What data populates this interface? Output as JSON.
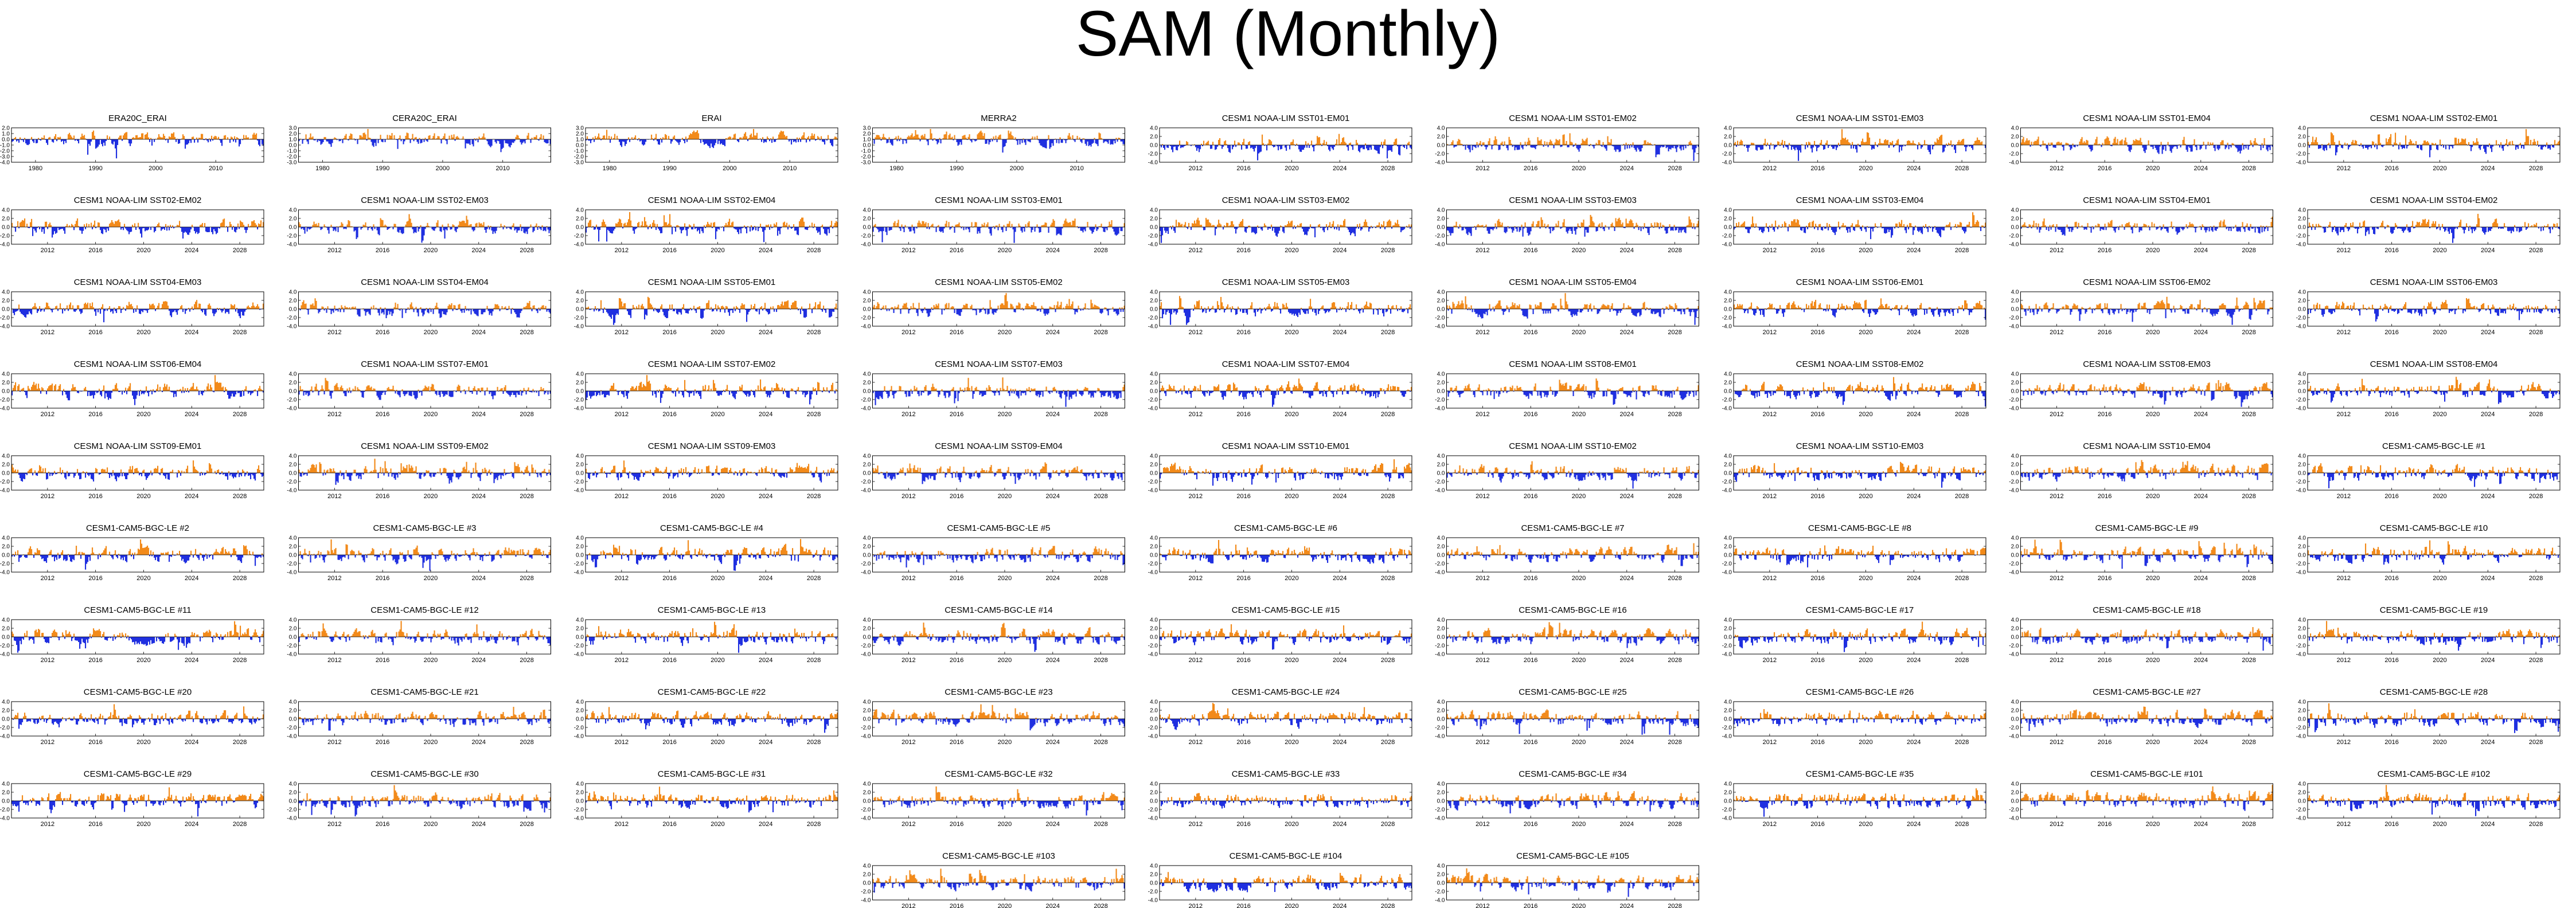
{
  "title": "SAM (Monthly)",
  "colors": {
    "positive": "#f28a1a",
    "negative": "#1f2fe0",
    "axis": "#000000"
  },
  "chart_data": {
    "type": "bar",
    "layout": "small-multiples",
    "ylim": [
      -4,
      4
    ],
    "grid": false,
    "panels": [
      {
        "title": "ERA20C_ERAI",
        "ylim": [
          -6,
          3
        ],
        "yticks": [
          "2.0",
          "1.0",
          "0.0",
          "-1.0",
          "-2.0",
          "-3.0",
          "-4.0"
        ],
        "xticks": [
          "1980",
          "1990",
          "2000",
          "2010"
        ],
        "xlim": [
          1976,
          2018
        ]
      },
      {
        "title": "CERA20C_ERAI",
        "ylim": [
          -6,
          3
        ],
        "yticks": [
          "3.0",
          "2.0",
          "1.0",
          "0.0",
          "-1.0",
          "-2.0",
          "-3.0"
        ],
        "xticks": [
          "1980",
          "1990",
          "2000",
          "2010"
        ],
        "xlim": [
          1976,
          2018
        ]
      },
      {
        "title": "ERAI",
        "ylim": [
          -6,
          3
        ],
        "yticks": [
          "3.0",
          "2.0",
          "1.0",
          "0.0",
          "-1.0",
          "-2.0",
          "-3.0"
        ],
        "xticks": [
          "1980",
          "1990",
          "2000",
          "2010"
        ],
        "xlim": [
          1976,
          2018
        ]
      },
      {
        "title": "MERRA2",
        "ylim": [
          -6,
          3
        ],
        "yticks": [
          "3.0",
          "2.0",
          "1.0",
          "0.0",
          "-1.0",
          "-2.0",
          "-3.0"
        ],
        "xticks": [
          "1980",
          "1990",
          "2000",
          "2010"
        ],
        "xlim": [
          1976,
          2018
        ]
      },
      {
        "title": "CESM1 NOAA-LIM SST01-EM01"
      },
      {
        "title": "CESM1 NOAA-LIM SST01-EM02"
      },
      {
        "title": "CESM1 NOAA-LIM SST01-EM03"
      },
      {
        "title": "CESM1 NOAA-LIM SST01-EM04"
      },
      {
        "title": "CESM1 NOAA-LIM SST02-EM01"
      },
      {
        "title": "CESM1 NOAA-LIM SST02-EM02"
      },
      {
        "title": "CESM1 NOAA-LIM SST02-EM03"
      },
      {
        "title": "CESM1 NOAA-LIM SST02-EM04"
      },
      {
        "title": "CESM1 NOAA-LIM SST03-EM01"
      },
      {
        "title": "CESM1 NOAA-LIM SST03-EM02"
      },
      {
        "title": "CESM1 NOAA-LIM SST03-EM03"
      },
      {
        "title": "CESM1 NOAA-LIM SST03-EM04"
      },
      {
        "title": "CESM1 NOAA-LIM SST04-EM01"
      },
      {
        "title": "CESM1 NOAA-LIM SST04-EM02"
      },
      {
        "title": "CESM1 NOAA-LIM SST04-EM03"
      },
      {
        "title": "CESM1 NOAA-LIM SST04-EM04"
      },
      {
        "title": "CESM1 NOAA-LIM SST05-EM01"
      },
      {
        "title": "CESM1 NOAA-LIM SST05-EM02"
      },
      {
        "title": "CESM1 NOAA-LIM SST05-EM03"
      },
      {
        "title": "CESM1 NOAA-LIM SST05-EM04"
      },
      {
        "title": "CESM1 NOAA-LIM SST06-EM01"
      },
      {
        "title": "CESM1 NOAA-LIM SST06-EM02"
      },
      {
        "title": "CESM1 NOAA-LIM SST06-EM03"
      },
      {
        "title": "CESM1 NOAA-LIM SST06-EM04"
      },
      {
        "title": "CESM1 NOAA-LIM SST07-EM01"
      },
      {
        "title": "CESM1 NOAA-LIM SST07-EM02"
      },
      {
        "title": "CESM1 NOAA-LIM SST07-EM03"
      },
      {
        "title": "CESM1 NOAA-LIM SST07-EM04"
      },
      {
        "title": "CESM1 NOAA-LIM SST08-EM01"
      },
      {
        "title": "CESM1 NOAA-LIM SST08-EM02"
      },
      {
        "title": "CESM1 NOAA-LIM SST08-EM03"
      },
      {
        "title": "CESM1 NOAA-LIM SST08-EM04"
      },
      {
        "title": "CESM1 NOAA-LIM SST09-EM01"
      },
      {
        "title": "CESM1 NOAA-LIM SST09-EM02"
      },
      {
        "title": "CESM1 NOAA-LIM SST09-EM03"
      },
      {
        "title": "CESM1 NOAA-LIM SST09-EM04"
      },
      {
        "title": "CESM1 NOAA-LIM SST10-EM01"
      },
      {
        "title": "CESM1 NOAA-LIM SST10-EM02"
      },
      {
        "title": "CESM1 NOAA-LIM SST10-EM03"
      },
      {
        "title": "CESM1 NOAA-LIM SST10-EM04"
      },
      {
        "title": "CESM1-CAM5-BGC-LE #1"
      },
      {
        "title": "CESM1-CAM5-BGC-LE #2"
      },
      {
        "title": "CESM1-CAM5-BGC-LE #3"
      },
      {
        "title": "CESM1-CAM5-BGC-LE #4"
      },
      {
        "title": "CESM1-CAM5-BGC-LE #5"
      },
      {
        "title": "CESM1-CAM5-BGC-LE #6"
      },
      {
        "title": "CESM1-CAM5-BGC-LE #7"
      },
      {
        "title": "CESM1-CAM5-BGC-LE #8"
      },
      {
        "title": "CESM1-CAM5-BGC-LE #9"
      },
      {
        "title": "CESM1-CAM5-BGC-LE #10"
      },
      {
        "title": "CESM1-CAM5-BGC-LE #11"
      },
      {
        "title": "CESM1-CAM5-BGC-LE #12"
      },
      {
        "title": "CESM1-CAM5-BGC-LE #13"
      },
      {
        "title": "CESM1-CAM5-BGC-LE #14"
      },
      {
        "title": "CESM1-CAM5-BGC-LE #15"
      },
      {
        "title": "CESM1-CAM5-BGC-LE #16"
      },
      {
        "title": "CESM1-CAM5-BGC-LE #17"
      },
      {
        "title": "CESM1-CAM5-BGC-LE #18"
      },
      {
        "title": "CESM1-CAM5-BGC-LE #19"
      },
      {
        "title": "CESM1-CAM5-BGC-LE #20"
      },
      {
        "title": "CESM1-CAM5-BGC-LE #21"
      },
      {
        "title": "CESM1-CAM5-BGC-LE #22"
      },
      {
        "title": "CESM1-CAM5-BGC-LE #23"
      },
      {
        "title": "CESM1-CAM5-BGC-LE #24"
      },
      {
        "title": "CESM1-CAM5-BGC-LE #25"
      },
      {
        "title": "CESM1-CAM5-BGC-LE #26"
      },
      {
        "title": "CESM1-CAM5-BGC-LE #27"
      },
      {
        "title": "CESM1-CAM5-BGC-LE #28"
      },
      {
        "title": "CESM1-CAM5-BGC-LE #29"
      },
      {
        "title": "CESM1-CAM5-BGC-LE #30"
      },
      {
        "title": "CESM1-CAM5-BGC-LE #31"
      },
      {
        "title": "CESM1-CAM5-BGC-LE #32"
      },
      {
        "title": "CESM1-CAM5-BGC-LE #33"
      },
      {
        "title": "CESM1-CAM5-BGC-LE #34"
      },
      {
        "title": "CESM1-CAM5-BGC-LE #35"
      },
      {
        "title": "CESM1-CAM5-BGC-LE #101"
      },
      {
        "title": "CESM1-CAM5-BGC-LE #102"
      },
      {
        "title": "CESM1-CAM5-BGC-LE #103"
      },
      {
        "title": "CESM1-CAM5-BGC-LE #104"
      },
      {
        "title": "CESM1-CAM5-BGC-LE #105"
      }
    ],
    "model_defaults": {
      "ylim": [
        -4,
        4
      ],
      "yticks": [
        "4.0",
        "2.0",
        "0.0",
        "-2.0",
        "-4.0"
      ],
      "xticks": [
        "2012",
        "2016",
        "2020",
        "2024",
        "2028"
      ],
      "xlim": [
        2009,
        2030
      ]
    }
  }
}
